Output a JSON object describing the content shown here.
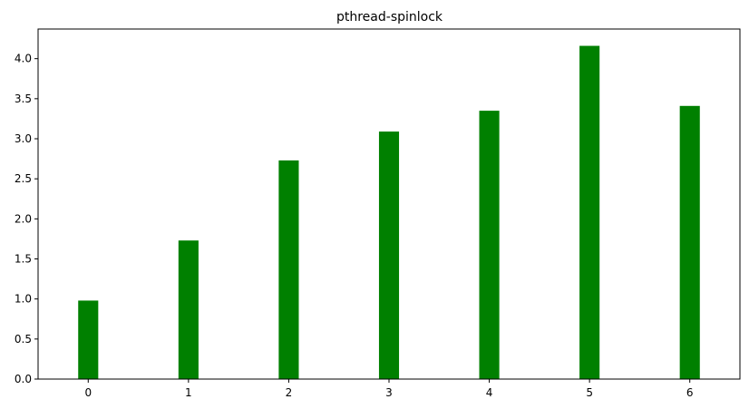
{
  "chart_data": {
    "type": "bar",
    "title": "pthread-spinlock",
    "categories": [
      "0",
      "1",
      "2",
      "3",
      "4",
      "5",
      "6"
    ],
    "values": [
      0.98,
      1.73,
      2.73,
      3.09,
      3.35,
      4.16,
      3.41
    ],
    "xlabel": "",
    "ylabel": "",
    "ylim": [
      0,
      4.37
    ],
    "yticks": [
      "0.0",
      "0.5",
      "1.0",
      "1.5",
      "2.0",
      "2.5",
      "3.0",
      "3.5",
      "4.0"
    ],
    "bar_color": "#008000",
    "grid": false
  }
}
